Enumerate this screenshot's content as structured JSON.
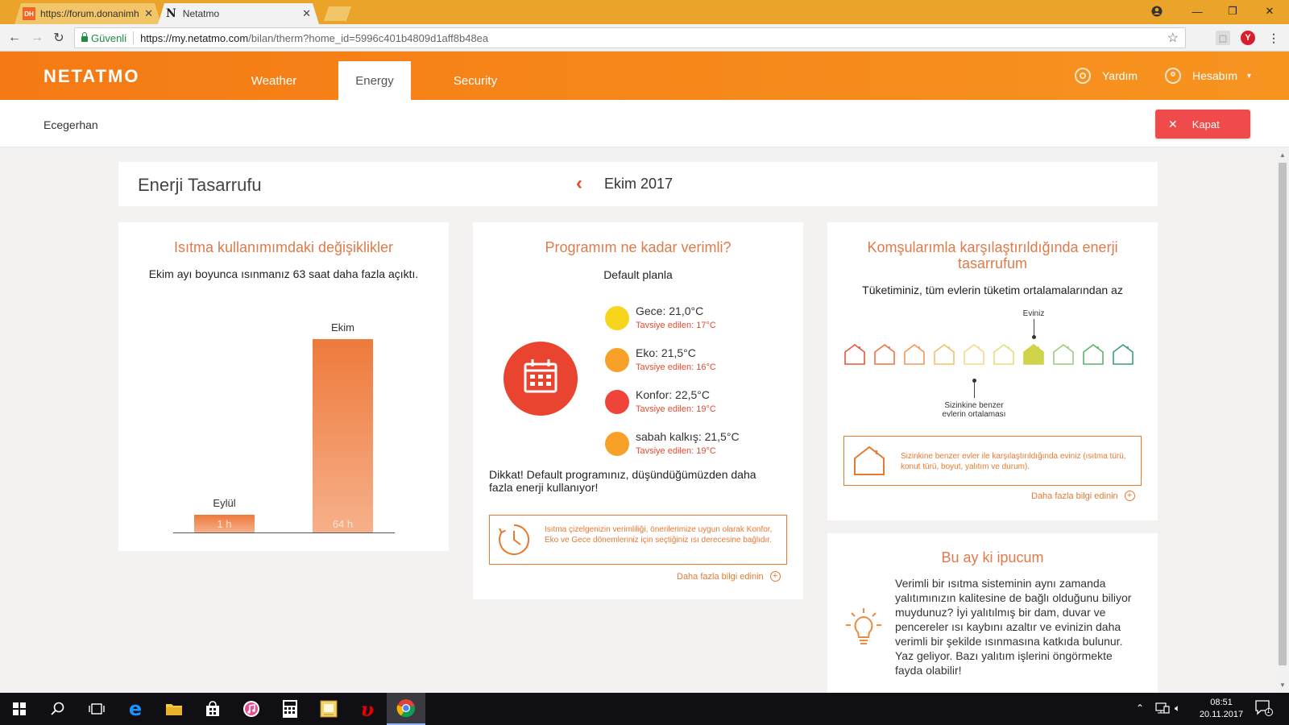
{
  "browser": {
    "tabs": [
      {
        "title": "https://forum.donanimhaber",
        "favicon": "DH",
        "active": false
      },
      {
        "title": "Netatmo",
        "favicon": "N",
        "active": true
      }
    ],
    "address": {
      "secure_label": "Güvenli",
      "url_host": "https://my.netatmo.com",
      "url_path": "/bilan/therm?home_id=5996c401b4809d1aff8b48ea"
    },
    "profile_badge": "Y"
  },
  "header": {
    "logo": "NETATMO",
    "tabs": [
      {
        "label": "Weather",
        "active": false
      },
      {
        "label": "Energy",
        "active": true
      },
      {
        "label": "Security",
        "active": false
      }
    ],
    "help": "Yardım",
    "account": "Hesabım"
  },
  "subheader": {
    "home_name": "Ecegerhan",
    "close_label": "Kapat"
  },
  "page": {
    "title": "Enerji Tasarrufu",
    "month": "Ekim 2017"
  },
  "usage_card": {
    "title": "Isıtma kullanımımdaki değişiklikler",
    "summary": "Ekim ayı boyunca ısınmanız 63 saat daha fazla açıktı."
  },
  "chart_data": {
    "type": "bar",
    "categories": [
      "Eylül",
      "Ekim"
    ],
    "values": [
      1,
      64
    ],
    "value_labels": [
      "1 h",
      "64 h"
    ],
    "title": "",
    "xlabel": "",
    "ylabel": "",
    "ylim": [
      0,
      64
    ],
    "grid": false
  },
  "program_card": {
    "title": "Programım ne kadar verimli?",
    "plan": "Default planla",
    "setpoints": [
      {
        "name": "Gece: 21,0°C",
        "recommended": "Tavsiye edilen: 17°C",
        "color": "#f7d51d"
      },
      {
        "name": "Eko: 21,5°C",
        "recommended": "Tavsiye edilen: 16°C",
        "color": "#f7a128"
      },
      {
        "name": "Konfor: 22,5°C",
        "recommended": "Tavsiye edilen: 19°C",
        "color": "#f0443a"
      },
      {
        "name": "sabah kalkış: 21,5°C",
        "recommended": "Tavsiye edilen: 19°C",
        "color": "#f7a128"
      }
    ],
    "warning": "Dikkat! Default programınız, düşündüğümüzden daha fazla enerji kullanıyor!",
    "info": "Isıtma çizelgenizin verimliliği, önerilerimize uygun olarak Konfor, Eko ve Gece dönemleriniz için seçtiğiniz ısı derecesine bağlıdır.",
    "more": "Daha fazla bilgi edinin"
  },
  "neighbors_card": {
    "title": "Komşularımla karşılaştırıldığında enerji tasarrufum",
    "summary": "Tüketiminiz, tüm evlerin tüketim ortalamalarından az",
    "your_home_label": "Eviniz",
    "average_label": "Sizinkine benzer evlerin ortalaması",
    "house_colors": [
      "#e8553a",
      "#ef7244",
      "#f3955c",
      "#f3c06a",
      "#f5d98a",
      "#e3df7a",
      "#cfd44b",
      "#9ccc7a",
      "#5bb56a",
      "#3a9e78"
    ],
    "your_home_index": 6,
    "average_index": 4,
    "info": "Sizinkine benzer evler ile karşılaştırıldığında eviniz (ısıtma türü, konut türü, boyut, yalıtım ve durum).",
    "more": "Daha fazla bilgi edinin"
  },
  "tip_card": {
    "title": "Bu ay ki ipucum",
    "text": "Verimli bir ısıtma sisteminin aynı zamanda yalıtımınızın kalitesine de bağlı olduğunu biliyor muydunuz? İyi yalıtılmış bir dam, duvar ve pencereler ısı kaybını azaltır ve evinizin daha verimli bir şekilde ısınmasına katkıda bulunur. Yaz geliyor. Bazı yalıtım işlerini öngörmekte fayda olabilir!"
  },
  "taskbar": {
    "time": "08:51",
    "date": "20.11.2017",
    "notification_count": "1"
  },
  "colors": {
    "brand_orange": "#f57a14",
    "accent_text": "#e07a4a",
    "close_button": "#f04b4b"
  }
}
